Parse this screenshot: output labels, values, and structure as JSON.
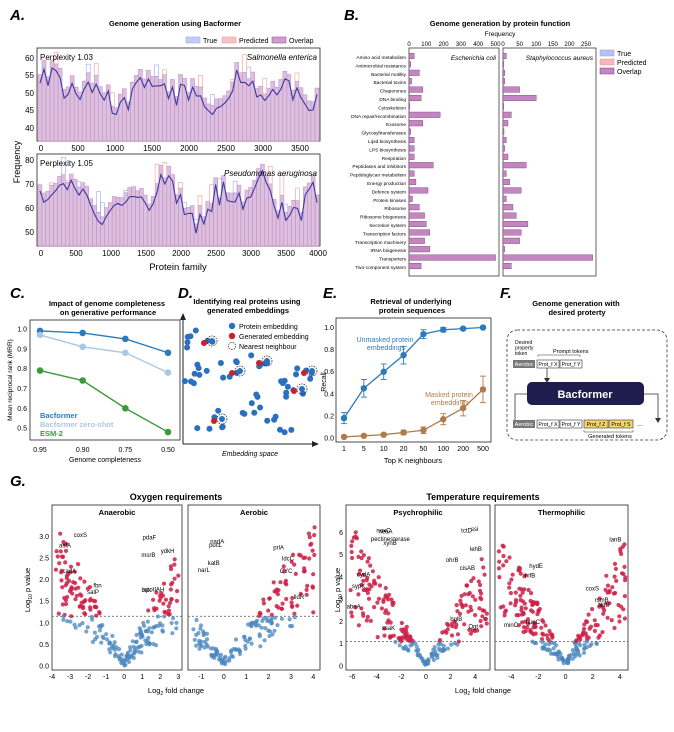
{
  "colors": {
    "true": "#9aa8ef",
    "predicted": "#f29a9a",
    "overlap": "#c486c0",
    "overlap_fill": "#dcc0df",
    "line_dark": "#3b3aa0",
    "blue": "#2b7bba",
    "lightblue": "#a9c8e6",
    "green": "#3a9b3a",
    "orange": "#b07b4a",
    "red": "#cc1f45",
    "navy": "#1f1d4e"
  },
  "panelA": {
    "letter": "A.",
    "title": "Genome generation using Bacformer",
    "legend": [
      "True",
      "Predicted",
      "Overlap"
    ],
    "ylabel": "Frequency",
    "xlabel": "Protein family",
    "top": {
      "perplexity": "Perplexity 1.03",
      "species": "Salmonella enterica",
      "yticks": [
        "60",
        "55",
        "50",
        "45",
        "40"
      ],
      "xticks": [
        "0",
        "500",
        "1000",
        "1500",
        "2000",
        "2500",
        "3000",
        "3500"
      ]
    },
    "bottom": {
      "perplexity": "Perplexity 1.05",
      "species": "Pseudomonas aeruginosa",
      "yticks": [
        "80",
        "70",
        "60",
        "50"
      ],
      "xticks": [
        "0",
        "500",
        "1000",
        "1500",
        "2000",
        "2500",
        "3000",
        "3500",
        "4000"
      ]
    }
  },
  "panelB": {
    "letter": "B.",
    "title": "Genome generation by protein function",
    "xlabel": "Frequency",
    "legend": [
      "True",
      "Predicted",
      "Overlap"
    ],
    "left_species": "Escherichia coli",
    "right_species": "Staphylococcus aureus",
    "left_ticks": [
      "0",
      "100",
      "200",
      "300",
      "400",
      "500"
    ],
    "right_ticks": [
      "0",
      "50",
      "100",
      "150",
      "200",
      "250"
    ],
    "categories": [
      "Amino acid metabolism",
      "Antimicrobial resistance",
      "Bacterial motility",
      "Bacterial toxins",
      "Chaperones",
      "DNA binding",
      "Cytoskeleton",
      "DNA repair/recombination",
      "Exosome",
      "Glycosyltransferases",
      "Lipid biosynthesis",
      "LPS biosynthesis",
      "Respiration",
      "Peptidases and inhibitors",
      "Peptidoglycan metabolism",
      "Energy production",
      "Defence system",
      "Protein kinases",
      "Ribosome",
      "Ribosome biogenesis",
      "Secretion system",
      "Transcription factors",
      "Transcription machinery",
      "tRNA biogenesis",
      "Transporters",
      "Two-component system"
    ],
    "left_values": [
      30,
      10,
      60,
      15,
      80,
      70,
      5,
      180,
      80,
      10,
      30,
      30,
      30,
      140,
      30,
      40,
      110,
      20,
      60,
      90,
      100,
      120,
      90,
      120,
      500,
      70
    ],
    "right_values": [
      10,
      2,
      5,
      5,
      50,
      100,
      2,
      25,
      15,
      3,
      10,
      5,
      15,
      70,
      10,
      20,
      55,
      10,
      30,
      40,
      75,
      55,
      50,
      5,
      270,
      25
    ]
  },
  "panelC": {
    "letter": "C.",
    "title": "Impact of genome completeness on generative performance",
    "ylabel": "Mean reciprocal rank (MRR)",
    "xlabel": "Genome completeness",
    "xticks": [
      "0.95",
      "0.90",
      "0.75",
      "0.50"
    ],
    "yticks": [
      "1.0",
      "0.9",
      "0.8",
      "0.7",
      "0.6",
      "0.5"
    ],
    "legend": [
      "Bacformer",
      "Bacformer zero-shot",
      "ESM-2"
    ],
    "chart_data": {
      "type": "line",
      "x": [
        "0.95",
        "0.90",
        "0.75",
        "0.50"
      ],
      "ylim": [
        0.45,
        1.02
      ],
      "series": [
        {
          "name": "Bacformer",
          "values": [
            0.99,
            0.98,
            0.95,
            0.88
          ]
        },
        {
          "name": "Bacformer zero-shot",
          "values": [
            0.97,
            0.91,
            0.88,
            0.78
          ]
        },
        {
          "name": "ESM-2",
          "values": [
            0.79,
            0.74,
            0.6,
            0.48
          ]
        }
      ]
    }
  },
  "panelD": {
    "letter": "D.",
    "title": "Identifying real proteins using generated embeddings",
    "legend": [
      "Protein embedding",
      "Generated embedding",
      "Nearest neighbour"
    ],
    "xlabel": "Embedding space"
  },
  "panelE": {
    "letter": "E.",
    "title": "Retrieval of underlying protein sequences",
    "ylabel": "Recall",
    "xlabel": "Top K neighbours",
    "xticks": [
      "1",
      "5",
      "10",
      "20",
      "50",
      "100",
      "200",
      "500"
    ],
    "yticks": [
      "1.0",
      "0.8",
      "0.6",
      "0.4",
      "0.2",
      "0.0"
    ],
    "label_unmasked": "Unmasked protein embeddings",
    "label_masked": "Masked protein embeddings",
    "chart_data": {
      "type": "line",
      "x": [
        "1",
        "5",
        "10",
        "20",
        "50",
        "100",
        "200",
        "500"
      ],
      "ylim": [
        0,
        1.05
      ],
      "series": [
        {
          "name": "Unmasked protein embeddings",
          "values": [
            0.18,
            0.45,
            0.6,
            0.75,
            0.94,
            0.98,
            0.99,
            1.0
          ]
        },
        {
          "name": "Masked protein embeddings",
          "values": [
            0.01,
            0.02,
            0.03,
            0.05,
            0.07,
            0.17,
            0.27,
            0.44
          ]
        }
      ]
    }
  },
  "panelF": {
    "letter": "F.",
    "title": "Genome generation with desired property",
    "desired_label": "Desired property token",
    "prompt_label": "Prompt tokens",
    "property_token": "Aerobic",
    "prompt_tokens": [
      "Prot_f X",
      "Prot_f Y"
    ],
    "model": "Bacformer",
    "generated_tokens": [
      "Prot_f Z",
      "Prot_f S"
    ],
    "generated_label": "Generated tokens"
  },
  "panelG": {
    "letter": "G.",
    "oxygen_title": "Oxygen requirements",
    "temperature_title": "Temperature requirements",
    "ylabel": "Log10 p value",
    "xlabel": "Log2 fold change",
    "plots": [
      {
        "title": "Anaerobic",
        "yticks": [
          "3.0",
          "2.5",
          "2.0",
          "1.5",
          "1.0",
          "0.5",
          "0.0"
        ],
        "xticks": [
          "-4",
          "-3",
          "-2",
          "-1",
          "0",
          "1",
          "2",
          "3"
        ],
        "labels": [
          "fbn",
          "msrB",
          "coxS",
          "spoIIAH",
          "salP",
          "pdaF",
          "cadA",
          "ydkH",
          "asfA",
          "buk"
        ]
      },
      {
        "title": "Aerobic",
        "yticks": [],
        "xticks": [
          "-1",
          "0",
          "1",
          "2",
          "3",
          "4"
        ],
        "labels": [
          "pucL",
          "lldR",
          "narL",
          "ldcC",
          "nadA",
          "CYC",
          "katB",
          "prlA"
        ]
      },
      {
        "title": "Psychrophilic",
        "yticks": [
          "6",
          "5",
          "4",
          "3",
          "2",
          "1",
          "0"
        ],
        "xticks": [
          "-6",
          "-4",
          "-2",
          "0",
          "2",
          "4"
        ],
        "labels": [
          "xynB",
          "bglB",
          "pectinesterase",
          "ssi",
          "abnA",
          "cisAB",
          "ssaK",
          "tctD",
          "neuA",
          "Ogt",
          "cydA",
          "ohrB",
          "sypK",
          "lehB",
          "noxC"
        ]
      },
      {
        "title": "Thermophilic",
        "yticks": [],
        "xticks": [
          "-4",
          "-2",
          "0",
          "2",
          "4"
        ],
        "labels": [
          "nupC",
          "rsmB",
          "nifB",
          "lanB",
          "hydE",
          "coxS",
          "minC",
          "NifU"
        ]
      }
    ]
  }
}
